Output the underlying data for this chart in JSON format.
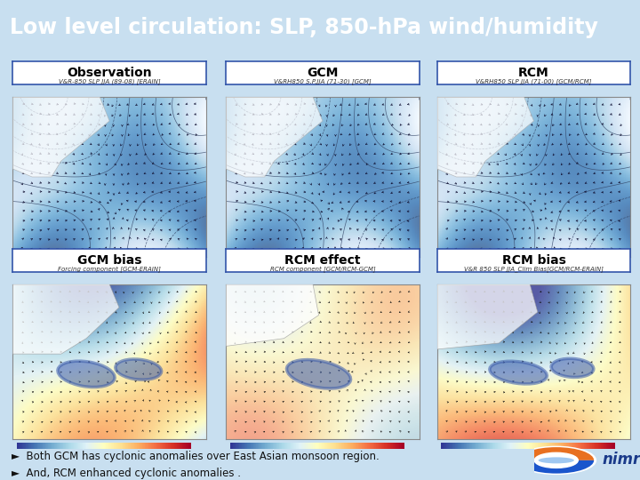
{
  "title": "Low level circulation: SLP, 850-hPa wind/humidity",
  "title_bg_top": "#1a4faa",
  "title_bg_bottom": "#0a2a7a",
  "title_text_color": "#ffffff",
  "slide_bg_color": "#c8dff0",
  "header_labels": [
    "Observation",
    "GCM",
    "RCM"
  ],
  "bottom_labels": [
    "GCM bias",
    "RCM effect",
    "RCM bias"
  ],
  "top_subtitles": [
    "V&R-850 SLP JJA (89-08) [ERAIN]",
    "V&RH850 S.P.JJA (71-30) [GCM]",
    "V&RH850 SLP JJA (71-00) [GCM/RCM]"
  ],
  "bottom_subtitles": [
    "Forcing component [GCM-ERAIN]",
    "RCM component [GCM/RCM-GCM]",
    "V&R 850 SLP JJA_Clim Bias[GCM/RCM-ERAIN]"
  ],
  "bullet1": "Both GCM has cyclonic anomalies over East Asian monsoon region.",
  "bullet2": "And, RCM enhanced cyclonic anomalies .",
  "label_border_color": "#3355aa",
  "label_fill_color": "#ffffff",
  "label_text_color": "#000000",
  "map_border_color": "#888888",
  "ellipse_color": "#3a5aaa",
  "ellipse_alpha": 0.55,
  "bullet_fontsize": 8.5,
  "header_fontsize": 10,
  "subtitle_fontsize": 5,
  "title_fontsize": 17
}
